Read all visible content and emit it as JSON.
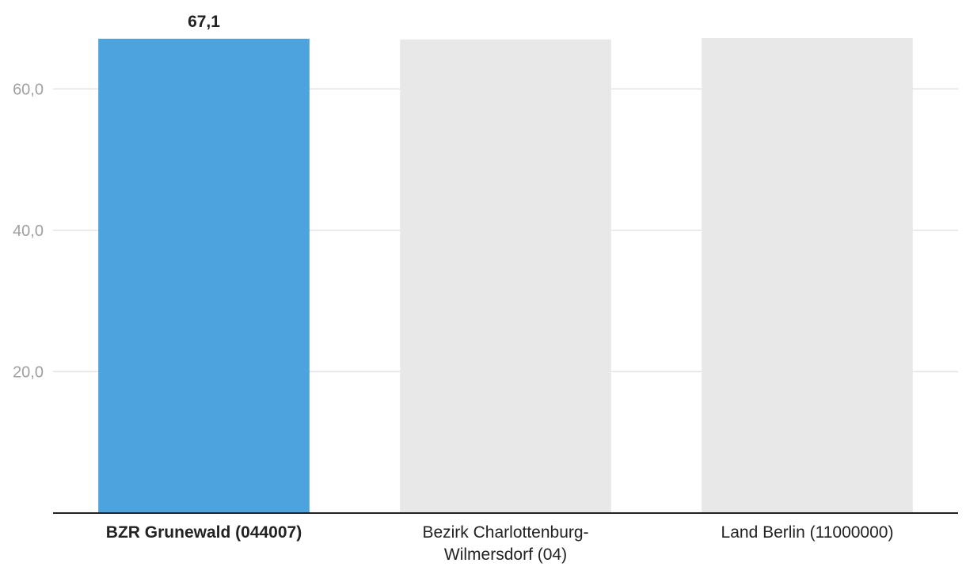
{
  "chart_data": {
    "type": "bar",
    "categories": [
      [
        "BZR Grunewald (044007)"
      ],
      [
        "Bezirk Charlottenburg-",
        "Wilmersdorf (04)"
      ],
      [
        "Land Berlin (11000000)"
      ]
    ],
    "values": [
      67.1,
      67.0,
      67.2
    ],
    "highlight_index": 0,
    "data_labels": [
      "67,1",
      "",
      ""
    ],
    "y_ticks": [
      "20,0",
      "40,0",
      "60,0"
    ],
    "y_tick_values": [
      20,
      40,
      60
    ],
    "ylim": [
      0,
      67.2
    ],
    "grid": true,
    "colors": {
      "highlight": "#4ca3de",
      "other": "#e8e8e8"
    }
  }
}
